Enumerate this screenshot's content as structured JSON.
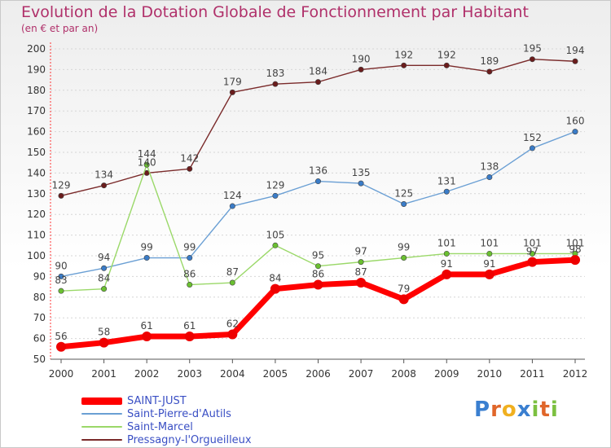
{
  "header": {
    "title": "Evolution de la Dotation Globale de Fonctionnement par Habitant",
    "subtitle": "(en € et par an)"
  },
  "logo": {
    "text": "Proxiti",
    "letters": [
      "P",
      "r",
      "o",
      "x",
      "i",
      "t",
      "i"
    ],
    "colors": [
      "#3a7fd0",
      "#e0662a",
      "#f0b020",
      "#3a7fd0",
      "#7cc040",
      "#e0662a",
      "#7cc040"
    ]
  },
  "chart_data": {
    "type": "line",
    "title": "Evolution de la Dotation Globale de Fonctionnement par Habitant",
    "subtitle": "(en € et par an)",
    "xlabel": "",
    "ylabel": "",
    "x": [
      2000,
      2001,
      2002,
      2003,
      2004,
      2005,
      2006,
      2007,
      2008,
      2009,
      2010,
      2011,
      2012
    ],
    "ylim": [
      50,
      200
    ],
    "yticks": [
      50,
      60,
      70,
      80,
      90,
      100,
      110,
      120,
      130,
      140,
      150,
      160,
      170,
      180,
      190,
      200
    ],
    "grid": "horizontal dashed",
    "legend_position": "bottom-left",
    "series": [
      {
        "name": "SAINT-JUST",
        "color": "#ff0000",
        "marker": "#ee0000",
        "values": [
          56,
          58,
          61,
          61,
          62,
          84,
          86,
          87,
          79,
          91,
          91,
          97,
          98
        ],
        "labels": [
          "56",
          "58",
          "61",
          "61",
          "62",
          "84",
          "86",
          "87",
          "79",
          "91",
          "91",
          "97",
          "98"
        ]
      },
      {
        "name": "Saint-Pierre-d'Autils",
        "color": "#6a9fd4",
        "marker": "#3a7cc8",
        "values": [
          90,
          94,
          99,
          99,
          124,
          129,
          136,
          135,
          125,
          131,
          138,
          152,
          160
        ],
        "labels": [
          "90",
          "94",
          "99",
          "99",
          "124",
          "129",
          "136",
          "135",
          "125",
          "131",
          "138",
          "152",
          "160"
        ]
      },
      {
        "name": "Saint-Marcel",
        "color": "#9ad868",
        "marker": "#6ac030",
        "values": [
          83,
          84,
          144,
          86,
          87,
          105,
          95,
          97,
          99,
          101,
          101,
          101,
          101
        ],
        "labels": [
          "83",
          "84",
          "144",
          "86",
          "87",
          "105",
          "95",
          "97",
          "99",
          "101",
          "101",
          "101",
          "101"
        ]
      },
      {
        "name": "Pressagny-l'Orgueilleux",
        "color": "#7a2a2a",
        "marker": "#6a1c1c",
        "values": [
          129,
          134,
          140,
          142,
          179,
          183,
          184,
          190,
          192,
          192,
          189,
          195,
          194
        ],
        "labels": [
          "129",
          "134",
          "140",
          "142",
          "179",
          "183",
          "184",
          "190",
          "192",
          "192",
          "189",
          "195",
          "194"
        ]
      }
    ]
  }
}
